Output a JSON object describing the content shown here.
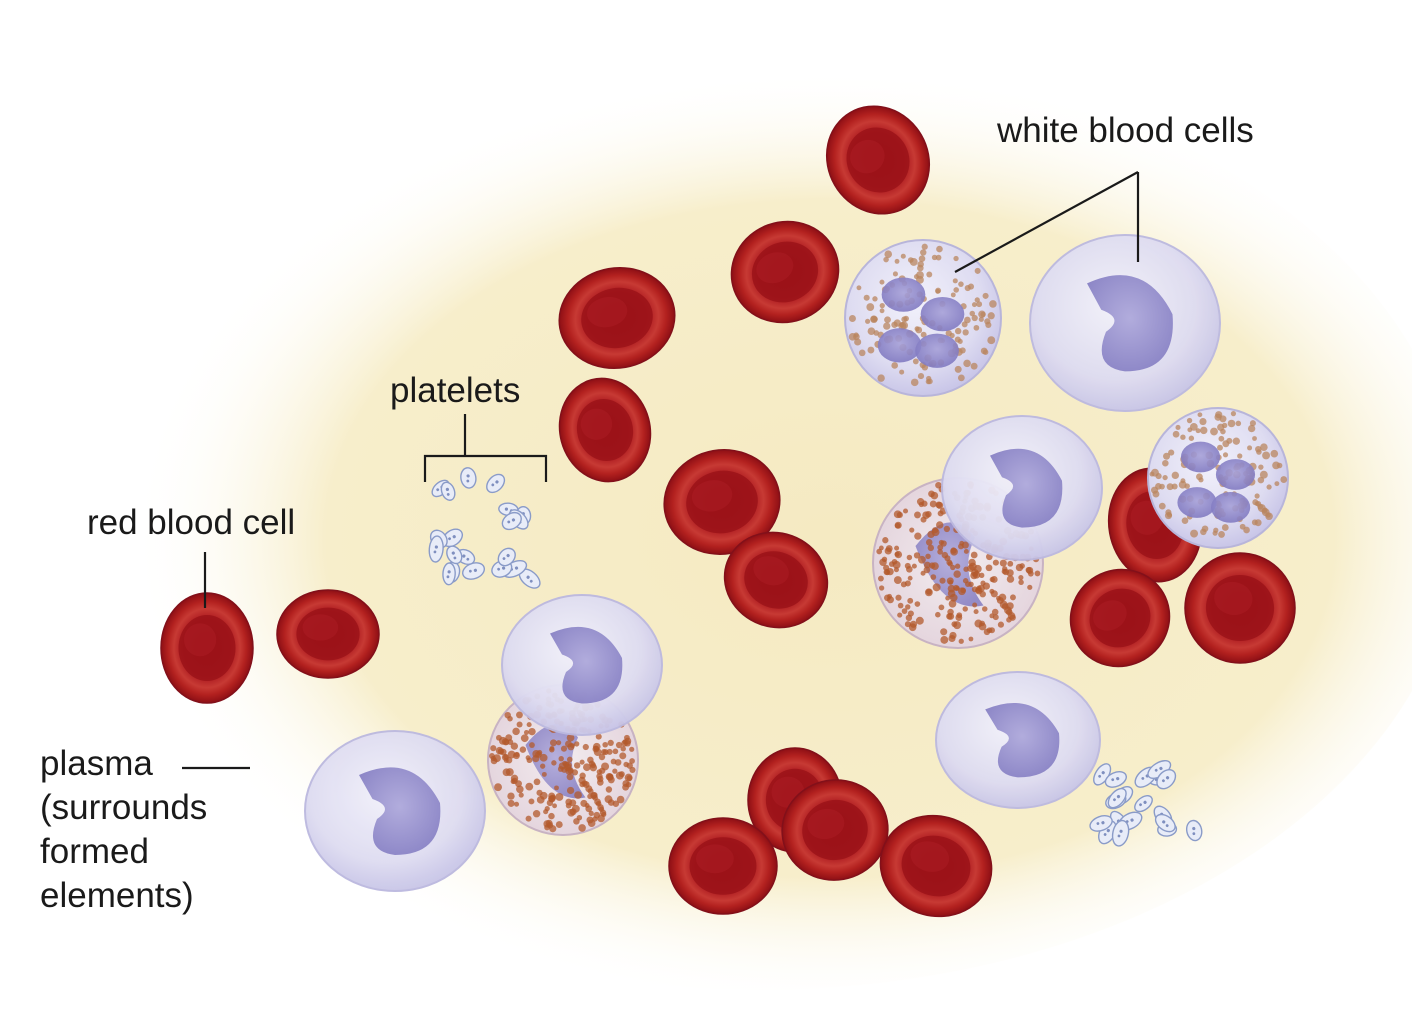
{
  "labels": {
    "white_blood_cells": "white blood cells",
    "platelets": "platelets",
    "red_blood_cell": "red blood cell",
    "plasma_lines": [
      "plasma",
      "(surrounds",
      "formed",
      "elements)"
    ]
  },
  "colors": {
    "plasma": "#f6ecc4",
    "red_blood_cell": "#a3141b",
    "white_blood_cell": "#dcdcf2",
    "nucleus": "#8c86c8",
    "granules": "#b25a2e",
    "leader_line": "#1a1a1a"
  }
}
